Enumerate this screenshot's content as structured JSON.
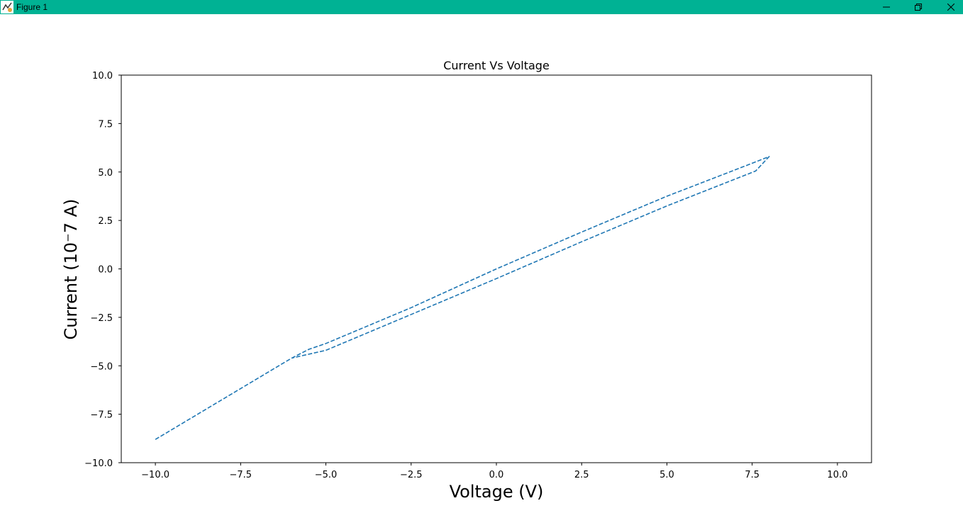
{
  "window": {
    "title": "Figure 1",
    "icons": {
      "app": "figure-app-icon",
      "minimize": "minimize-icon",
      "maximize": "restore-icon",
      "close": "close-icon"
    }
  },
  "colors": {
    "titlebar": "#00b294",
    "series": "#1f77b4"
  },
  "chart_data": {
    "type": "line",
    "title": "Current Vs Voltage",
    "xlabel": "Voltage (V)",
    "ylabel": "Current (10⁻7 A)",
    "xlim": [
      -11.0,
      11.0
    ],
    "ylim": [
      -10.0,
      10.0
    ],
    "xticks": [
      -10.0,
      -7.5,
      -5.0,
      -2.5,
      0.0,
      2.5,
      5.0,
      7.5,
      10.0
    ],
    "yticks": [
      -10.0,
      -7.5,
      -5.0,
      -2.5,
      0.0,
      2.5,
      5.0,
      7.5,
      10.0
    ],
    "xtick_labels": [
      "−10.0",
      "−7.5",
      "−5.0",
      "−2.5",
      "0.0",
      "2.5",
      "5.0",
      "7.5",
      "10.0"
    ],
    "ytick_labels": [
      "10.0",
      "7.5",
      "5.0",
      "2.5",
      "0.0",
      "−2.5",
      "−5.0",
      "−7.5",
      "−10.0"
    ],
    "grid": false,
    "line_style": "dashed",
    "series": [
      {
        "x": [
          -10.0,
          -6.0,
          -5.5,
          -5.0,
          -2.5,
          0.0,
          2.5,
          5.0,
          7.5,
          8.0,
          7.6,
          5.0,
          2.5,
          0.0,
          -2.5,
          -5.0,
          -6.0
        ],
        "y": [
          -8.8,
          -4.6,
          -4.15,
          -3.85,
          -2.0,
          0.0,
          1.9,
          3.75,
          5.45,
          5.8,
          5.05,
          3.25,
          1.4,
          -0.5,
          -2.35,
          -4.2,
          -4.6
        ]
      }
    ]
  }
}
